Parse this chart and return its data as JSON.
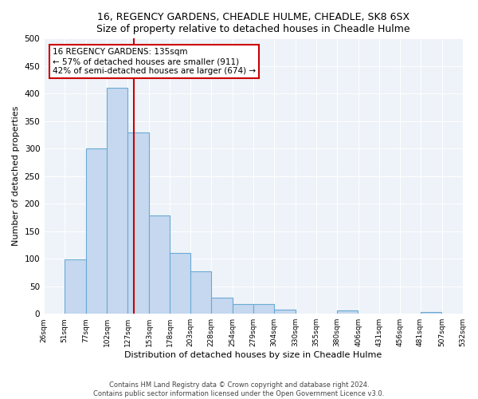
{
  "title": "16, REGENCY GARDENS, CHEADLE HULME, CHEADLE, SK8 6SX",
  "subtitle": "Size of property relative to detached houses in Cheadle Hulme",
  "xlabel": "Distribution of detached houses by size in Cheadle Hulme",
  "ylabel": "Number of detached properties",
  "bin_edges": [
    26,
    51,
    77,
    102,
    127,
    153,
    178,
    203,
    228,
    254,
    279,
    304,
    330,
    355,
    380,
    406,
    431,
    456,
    481,
    507,
    532
  ],
  "bin_labels": [
    "26sqm",
    "51sqm",
    "77sqm",
    "102sqm",
    "127sqm",
    "153sqm",
    "178sqm",
    "203sqm",
    "228sqm",
    "254sqm",
    "279sqm",
    "304sqm",
    "330sqm",
    "355sqm",
    "380sqm",
    "406sqm",
    "431sqm",
    "456sqm",
    "481sqm",
    "507sqm",
    "532sqm"
  ],
  "counts": [
    0,
    99,
    300,
    410,
    330,
    178,
    110,
    77,
    29,
    18,
    18,
    8,
    0,
    0,
    6,
    0,
    0,
    0,
    3,
    0,
    0
  ],
  "bar_color": "#c5d8ef",
  "bar_edge_color": "#6aaad4",
  "vline_x": 135,
  "vline_color": "#cc0000",
  "annotation_title": "16 REGENCY GARDENS: 135sqm",
  "annotation_line1": "← 57% of detached houses are smaller (911)",
  "annotation_line2": "42% of semi-detached houses are larger (674) →",
  "annotation_box_color": "#ffffff",
  "annotation_box_edge": "#cc0000",
  "ylim": [
    0,
    500
  ],
  "yticks": [
    0,
    50,
    100,
    150,
    200,
    250,
    300,
    350,
    400,
    450,
    500
  ],
  "footer1": "Contains HM Land Registry data © Crown copyright and database right 2024.",
  "footer2": "Contains public sector information licensed under the Open Government Licence v3.0."
}
